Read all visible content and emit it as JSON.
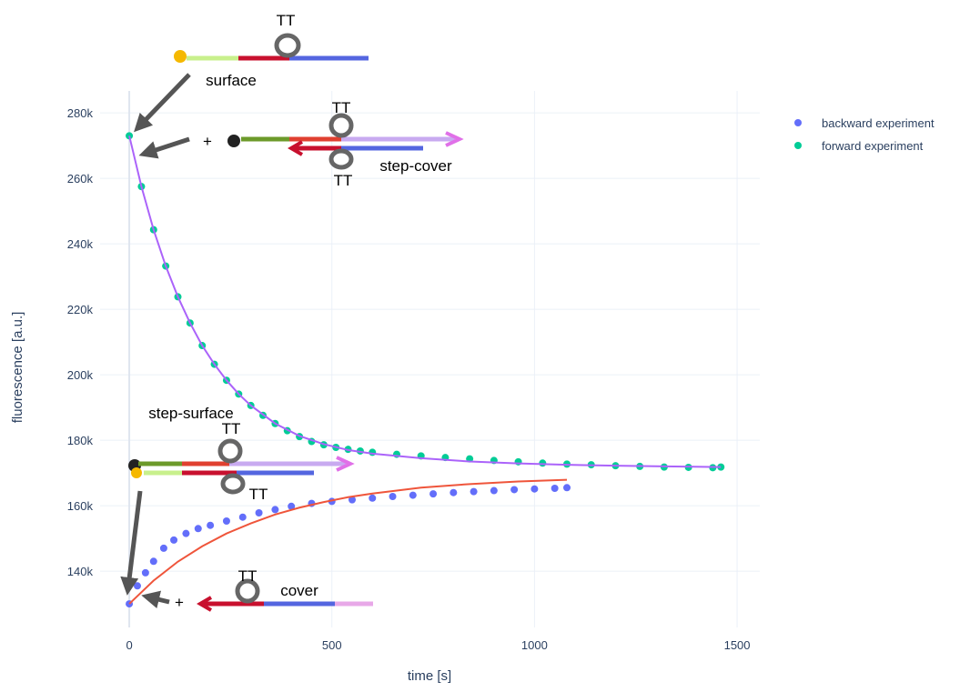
{
  "chart_data": {
    "type": "scatter",
    "x_label": "time [s]",
    "y_label": "fluorescence [a.u.]",
    "xlim": [
      -72,
      1556
    ],
    "ylim": [
      122800,
      286700
    ],
    "xticks": [
      0,
      500,
      1000,
      1500
    ],
    "yticks": [
      {
        "value": 140000,
        "label": "140k"
      },
      {
        "value": 160000,
        "label": "160k"
      },
      {
        "value": 180000,
        "label": "180k"
      },
      {
        "value": 200000,
        "label": "200k"
      },
      {
        "value": 220000,
        "label": "220k"
      },
      {
        "value": 240000,
        "label": "240k"
      },
      {
        "value": 260000,
        "label": "260k"
      },
      {
        "value": 280000,
        "label": "280k"
      }
    ],
    "grid": true,
    "legend": "top-right",
    "series": [
      {
        "name": "backward experiment",
        "color": "#636efa",
        "x": [
          0,
          20,
          40,
          60,
          85,
          110,
          140,
          170,
          200,
          240,
          280,
          320,
          360,
          400,
          450,
          500,
          550,
          600,
          650,
          700,
          750,
          800,
          850,
          900,
          950,
          1000,
          1050,
          1080
        ],
        "values": [
          130000,
          135500,
          139500,
          143000,
          147000,
          149500,
          151500,
          153000,
          154000,
          155300,
          156500,
          157800,
          158800,
          159800,
          160700,
          161300,
          161800,
          162300,
          162800,
          163200,
          163600,
          164000,
          164300,
          164600,
          164900,
          165100,
          165300,
          165500
        ]
      },
      {
        "name": "forward experiment",
        "color": "#00cc96",
        "x": [
          0,
          30,
          60,
          90,
          120,
          150,
          180,
          210,
          240,
          270,
          300,
          330,
          360,
          390,
          420,
          450,
          480,
          510,
          540,
          570,
          600,
          660,
          720,
          780,
          840,
          900,
          960,
          1020,
          1080,
          1140,
          1200,
          1260,
          1320,
          1380,
          1440,
          1460
        ],
        "values": [
          273000,
          257500,
          244300,
          233200,
          223800,
          215800,
          208900,
          203200,
          198300,
          194100,
          190600,
          187600,
          185100,
          182900,
          181100,
          179600,
          178600,
          177800,
          177200,
          176700,
          176300,
          175700,
          175200,
          174700,
          174300,
          173800,
          173400,
          173000,
          172700,
          172500,
          172200,
          172000,
          171800,
          171700,
          171600,
          171800
        ]
      }
    ],
    "fit_lines": [
      {
        "color": "#ab63fa",
        "x": [
          0,
          30,
          60,
          90,
          120,
          150,
          180,
          210,
          240,
          270,
          300,
          360,
          420,
          480,
          540,
          600,
          720,
          840,
          960,
          1080,
          1200,
          1320,
          1460
        ],
        "values": [
          273000,
          257500,
          244300,
          233200,
          223800,
          215800,
          208900,
          203200,
          198300,
          194100,
          190600,
          185100,
          181300,
          178800,
          177000,
          175900,
          174500,
          173500,
          172900,
          172500,
          172200,
          172000,
          171800
        ]
      },
      {
        "color": "#ef553b",
        "x": [
          0,
          60,
          120,
          180,
          240,
          300,
          360,
          420,
          480,
          540,
          600,
          720,
          840,
          960,
          1080
        ],
        "values": [
          130000,
          137100,
          142900,
          147600,
          151500,
          154600,
          157300,
          159400,
          161100,
          162600,
          163700,
          165500,
          166600,
          167400,
          167900
        ]
      }
    ],
    "annotations": [
      "TT",
      "surface",
      "+",
      "TT",
      "TT",
      "step-cover",
      "step-surface",
      "TT",
      "TT",
      "TT",
      "cover",
      "+"
    ]
  }
}
